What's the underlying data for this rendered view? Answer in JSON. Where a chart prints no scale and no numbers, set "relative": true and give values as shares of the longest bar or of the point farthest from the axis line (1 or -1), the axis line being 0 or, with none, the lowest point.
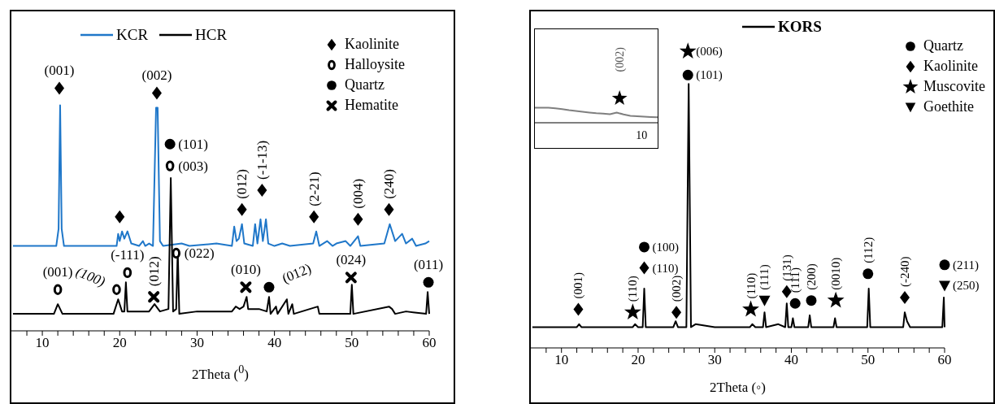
{
  "chart_data": [
    {
      "type": "line",
      "relative": true,
      "xlabel": "2Theta ($^{0}$)",
      "xlim": [
        6,
        60
      ],
      "xticks": [
        {
          "value": 8,
          "label": null
        },
        10,
        {
          "value": 12,
          "label": null
        },
        {
          "value": 14,
          "label": null
        },
        {
          "value": 16,
          "label": null
        },
        {
          "value": 18,
          "label": null
        },
        20,
        {
          "value": 22,
          "label": null
        },
        {
          "value": 24,
          "label": null
        },
        {
          "value": 26,
          "label": null
        },
        {
          "value": 28,
          "label": null
        },
        30,
        {
          "value": 32,
          "label": null
        },
        {
          "value": 34,
          "label": null
        },
        {
          "value": 36,
          "label": null
        },
        {
          "value": 38,
          "label": null
        },
        40,
        {
          "value": 42,
          "label": null
        },
        {
          "value": 44,
          "label": null
        },
        {
          "value": 46,
          "label": null
        },
        {
          "value": 48,
          "label": null
        },
        50,
        {
          "value": 52,
          "label": null
        },
        {
          "value": 54,
          "label": null
        },
        {
          "value": 56,
          "label": null
        },
        {
          "value": 58,
          "label": null
        },
        60
      ],
      "legend": "top right",
      "series": [
        {
          "type": "line",
          "name": "KCR",
          "color": "#1f77c9",
          "x": [
            6.2,
            11.8,
            12.1,
            12.3,
            12.5,
            12.8,
            19.6,
            19.8,
            20.0,
            20.3,
            20.6,
            21.0,
            21.5,
            22.5,
            23.0,
            23.3,
            23.8,
            24.3,
            24.7,
            24.9,
            25.2,
            25.6,
            28.0,
            29.0,
            32.5,
            34.5,
            34.8,
            35.1,
            35.4,
            35.8,
            36.1,
            37.2,
            37.5,
            37.8,
            38.2,
            38.5,
            38.9,
            39.2,
            40.0,
            41.0,
            42.0,
            45.0,
            45.4,
            45.8,
            46.8,
            47.5,
            48.0,
            49.2,
            49.8,
            50.8,
            51.1,
            54.2,
            54.9,
            55.6,
            56.5,
            57.0,
            57.8,
            58.3,
            59.5,
            60.0
          ],
          "values": [
            0.35,
            0.35,
            0.42,
            0.93,
            0.42,
            0.35,
            0.35,
            0.4,
            0.37,
            0.41,
            0.38,
            0.41,
            0.36,
            0.35,
            0.37,
            0.35,
            0.36,
            0.35,
            0.92,
            0.92,
            0.37,
            0.35,
            0.36,
            0.35,
            0.36,
            0.35,
            0.43,
            0.37,
            0.38,
            0.44,
            0.36,
            0.35,
            0.44,
            0.36,
            0.46,
            0.37,
            0.46,
            0.36,
            0.35,
            0.36,
            0.35,
            0.36,
            0.41,
            0.35,
            0.37,
            0.35,
            0.36,
            0.37,
            0.35,
            0.39,
            0.35,
            0.36,
            0.44,
            0.37,
            0.4,
            0.36,
            0.38,
            0.35,
            0.36,
            0.37
          ]
        },
        {
          "type": "line",
          "name": "HCR",
          "color": "#000000",
          "x": [
            6.2,
            11.5,
            12.0,
            12.6,
            19.2,
            19.8,
            20.3,
            20.6,
            20.8,
            21.0,
            23.8,
            24.5,
            25.2,
            26.3,
            26.6,
            26.9,
            27.3,
            27.5,
            27.7,
            30.0,
            34.5,
            35.0,
            35.5,
            36.0,
            36.4,
            36.6,
            38.0,
            39.0,
            39.3,
            39.5,
            40.2,
            40.4,
            41.6,
            41.8,
            42.3,
            42.5,
            45.6,
            45.8,
            49.8,
            50.0,
            50.2,
            54.8,
            55.2,
            55.6,
            57.0,
            59.6,
            59.8,
            60.0
          ],
          "values": [
            0.07,
            0.07,
            0.11,
            0.07,
            0.07,
            0.13,
            0.08,
            0.08,
            0.2,
            0.08,
            0.08,
            0.11,
            0.08,
            0.09,
            0.63,
            0.08,
            0.09,
            0.33,
            0.07,
            0.08,
            0.08,
            0.1,
            0.09,
            0.1,
            0.14,
            0.09,
            0.09,
            0.08,
            0.14,
            0.07,
            0.1,
            0.07,
            0.13,
            0.07,
            0.11,
            0.07,
            0.1,
            0.07,
            0.07,
            0.19,
            0.07,
            0.1,
            0.09,
            0.07,
            0.08,
            0.07,
            0.16,
            0.07
          ]
        },
        {
          "type": "scatter",
          "name": "Kaolinite",
          "color": "#000000",
          "marker": "diamond",
          "x": [
            12.2,
            24.8,
            20.0,
            35.8,
            38.4,
            45.1,
            50.8,
            54.8
          ],
          "values": [
            1.0,
            0.98,
            0.47,
            0.5,
            0.58,
            0.47,
            0.46,
            0.5
          ]
        },
        {
          "type": "scatter",
          "name": "Halloysite",
          "color": "#000000",
          "marker": "circle",
          "x": [
            12.0,
            19.6,
            21.0,
            26.5,
            27.3
          ],
          "values": [
            0.17,
            0.17,
            0.24,
            0.68,
            0.32
          ]
        },
        {
          "type": "scatter",
          "name": "Quartz",
          "color": "#000000",
          "marker": "circle",
          "x": [
            26.5,
            39.3,
            59.9
          ],
          "values": [
            0.77,
            0.18,
            0.2
          ]
        },
        {
          "type": "scatter",
          "name": "Hematite",
          "color": "#000000",
          "marker": "cross",
          "x": [
            24.4,
            36.3,
            49.9
          ],
          "values": [
            0.14,
            0.18,
            0.22
          ]
        }
      ],
      "annotations": [
        {
          "text": "(001)",
          "x": 12.2,
          "y": 1.0
        },
        {
          "text": "(002)",
          "x": 24.8,
          "y": 0.98
        },
        {
          "text": "(101)",
          "x": 26.5,
          "y": 0.77
        },
        {
          "text": "(003)",
          "x": 26.5,
          "y": 0.68
        },
        {
          "text": "(012)",
          "x": 35.8,
          "y": 0.5
        },
        {
          "text": "(-1-13)",
          "x": 38.4,
          "y": 0.58
        },
        {
          "text": "(2-21)",
          "x": 45.1,
          "y": 0.47
        },
        {
          "text": "(004)",
          "x": 50.8,
          "y": 0.46
        },
        {
          "text": "(240)",
          "x": 54.8,
          "y": 0.5
        },
        {
          "text": "(001)",
          "x": 12.0,
          "y": 0.17
        },
        {
          "text": "(100)",
          "x": 19.6,
          "y": 0.17
        },
        {
          "text": "(-111)",
          "x": 21.0,
          "y": 0.24
        },
        {
          "text": "(012)",
          "x": 24.4,
          "y": 0.14
        },
        {
          "text": "(022)",
          "x": 27.3,
          "y": 0.32
        },
        {
          "text": "(010)",
          "x": 36.3,
          "y": 0.18
        },
        {
          "text": "(012)",
          "x": 39.3,
          "y": 0.18
        },
        {
          "text": "(024)",
          "x": 49.9,
          "y": 0.22
        },
        {
          "text": "(011)",
          "x": 59.9,
          "y": 0.2
        }
      ]
    },
    {
      "type": "line",
      "relative": true,
      "xlabel": "2Theta (◦)",
      "xlim": [
        6,
        60
      ],
      "xticks": [
        {
          "value": 8,
          "label": null
        },
        10,
        {
          "value": 12,
          "label": null
        },
        {
          "value": 14,
          "label": null
        },
        {
          "value": 16,
          "label": null
        },
        {
          "value": 18,
          "label": null
        },
        20,
        {
          "value": 22,
          "label": null
        },
        {
          "value": 24,
          "label": null
        },
        {
          "value": 26,
          "label": null
        },
        {
          "value": 28,
          "label": null
        },
        30,
        {
          "value": 32,
          "label": null
        },
        {
          "value": 34,
          "label": null
        },
        {
          "value": 36,
          "label": null
        },
        {
          "value": 38,
          "label": null
        },
        40,
        {
          "value": 42,
          "label": null
        },
        {
          "value": 44,
          "label": null
        },
        {
          "value": 46,
          "label": null
        },
        {
          "value": 48,
          "label": null
        },
        50,
        {
          "value": 52,
          "label": null
        },
        {
          "value": 54,
          "label": null
        },
        {
          "value": 56,
          "label": null
        },
        {
          "value": 58,
          "label": null
        },
        60
      ],
      "legend": "top right",
      "series": [
        {
          "type": "line",
          "name": "KORS",
          "color": "#000000",
          "x": [
            6.2,
            10.0,
            12.0,
            12.3,
            12.6,
            19.3,
            19.6,
            20.0,
            20.6,
            20.8,
            21.0,
            24.6,
            24.9,
            25.2,
            26.3,
            26.6,
            26.9,
            27.5,
            30.0,
            34.6,
            34.9,
            35.3,
            36.3,
            36.5,
            36.7,
            38.3,
            39.2,
            39.4,
            39.6,
            40.0,
            40.2,
            40.4,
            42.2,
            42.4,
            42.6,
            45.5,
            45.7,
            45.9,
            49.9,
            50.1,
            50.3,
            54.6,
            54.8,
            55.1,
            55.5,
            59.7,
            59.9,
            60.0
          ],
          "values": [
            0.07,
            0.07,
            0.07,
            0.08,
            0.07,
            0.07,
            0.08,
            0.07,
            0.07,
            0.2,
            0.07,
            0.07,
            0.09,
            0.07,
            0.07,
            0.89,
            0.07,
            0.08,
            0.07,
            0.07,
            0.08,
            0.07,
            0.07,
            0.12,
            0.07,
            0.08,
            0.07,
            0.15,
            0.07,
            0.07,
            0.1,
            0.07,
            0.07,
            0.11,
            0.07,
            0.07,
            0.1,
            0.07,
            0.07,
            0.2,
            0.07,
            0.07,
            0.12,
            0.09,
            0.07,
            0.07,
            0.17,
            0.07
          ]
        },
        {
          "type": "scatter",
          "name": "Quartz",
          "color": "#000000",
          "marker": "circle",
          "x": [
            26.5,
            20.8,
            40.5,
            42.6,
            50.0,
            60.0
          ],
          "values": [
            0.92,
            0.34,
            0.15,
            0.16,
            0.25,
            0.28
          ]
        },
        {
          "type": "scatter",
          "name": "Kaolinite",
          "color": "#000000",
          "marker": "diamond",
          "x": [
            12.2,
            20.8,
            25.0,
            39.4,
            54.8
          ],
          "values": [
            0.13,
            0.27,
            0.12,
            0.19,
            0.17
          ]
        },
        {
          "type": "scatter",
          "name": "Muscovite",
          "color": "#000000",
          "marker": "star",
          "x": [
            26.5,
            19.3,
            34.7,
            45.8
          ],
          "values": [
            1.0,
            0.12,
            0.13,
            0.16
          ]
        },
        {
          "type": "scatter",
          "name": "Goethite",
          "color": "#000000",
          "marker": "triangle",
          "x": [
            36.5,
            60.0
          ],
          "values": [
            0.16,
            0.21
          ]
        }
      ],
      "annotations": [
        {
          "text": "(006)",
          "x": 26.5,
          "y": 1.0
        },
        {
          "text": "(101)",
          "x": 26.5,
          "y": 0.92
        },
        {
          "text": "(001)",
          "x": 12.2,
          "y": 0.13
        },
        {
          "text": "(110)",
          "x": 19.3,
          "y": 0.12
        },
        {
          "text": "(100)",
          "x": 20.8,
          "y": 0.34
        },
        {
          "text": "(110)",
          "x": 20.8,
          "y": 0.27
        },
        {
          "text": "(002)",
          "x": 25.0,
          "y": 0.12
        },
        {
          "text": "(110)",
          "x": 34.7,
          "y": 0.13
        },
        {
          "text": "(111)",
          "x": 36.5,
          "y": 0.16
        },
        {
          "text": "(131)",
          "x": 39.4,
          "y": 0.19
        },
        {
          "text": "(111)",
          "x": 40.5,
          "y": 0.15
        },
        {
          "text": "(200)",
          "x": 42.6,
          "y": 0.16
        },
        {
          "text": "(0010)",
          "x": 45.8,
          "y": 0.16
        },
        {
          "text": "(112)",
          "x": 50.0,
          "y": 0.25
        },
        {
          "text": "(-240)",
          "x": 54.8,
          "y": 0.17
        },
        {
          "text": "(211)",
          "x": 60.0,
          "y": 0.28
        },
        {
          "text": "(250)",
          "x": 60.0,
          "y": 0.21
        }
      ]
    },
    {
      "type": "line",
      "relative": true,
      "categories": [
        null,
        null,
        null,
        null,
        null,
        null,
        null,
        null,
        null,
        null,
        null,
        null,
        null,
        null,
        null,
        null,
        null,
        null,
        null
      ],
      "series": [
        {
          "type": "line",
          "color": "#7f7f7f",
          "values": [
            1.0,
            1.0,
            1.0,
            0.96,
            0.91,
            0.84,
            0.79,
            0.73,
            0.68,
            0.63,
            0.61,
            0.57,
            0.68,
            0.55,
            0.46,
            0.43,
            0.41,
            0.38,
            0.36
          ]
        }
      ],
      "annotations": [
        "(002)",
        "10"
      ]
    }
  ]
}
